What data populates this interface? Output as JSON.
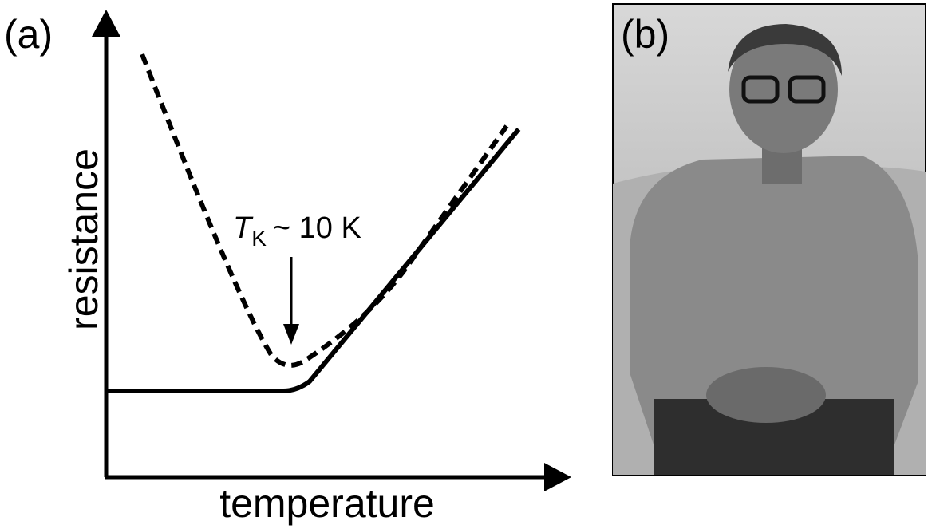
{
  "panel_a": {
    "label": "(a)",
    "y_axis_label": "resistance",
    "x_axis_label": "temperature",
    "annotation": {
      "symbol": "T",
      "subscript": "K",
      "text": "~ 10 K"
    }
  },
  "panel_b": {
    "label": "(b)"
  }
}
